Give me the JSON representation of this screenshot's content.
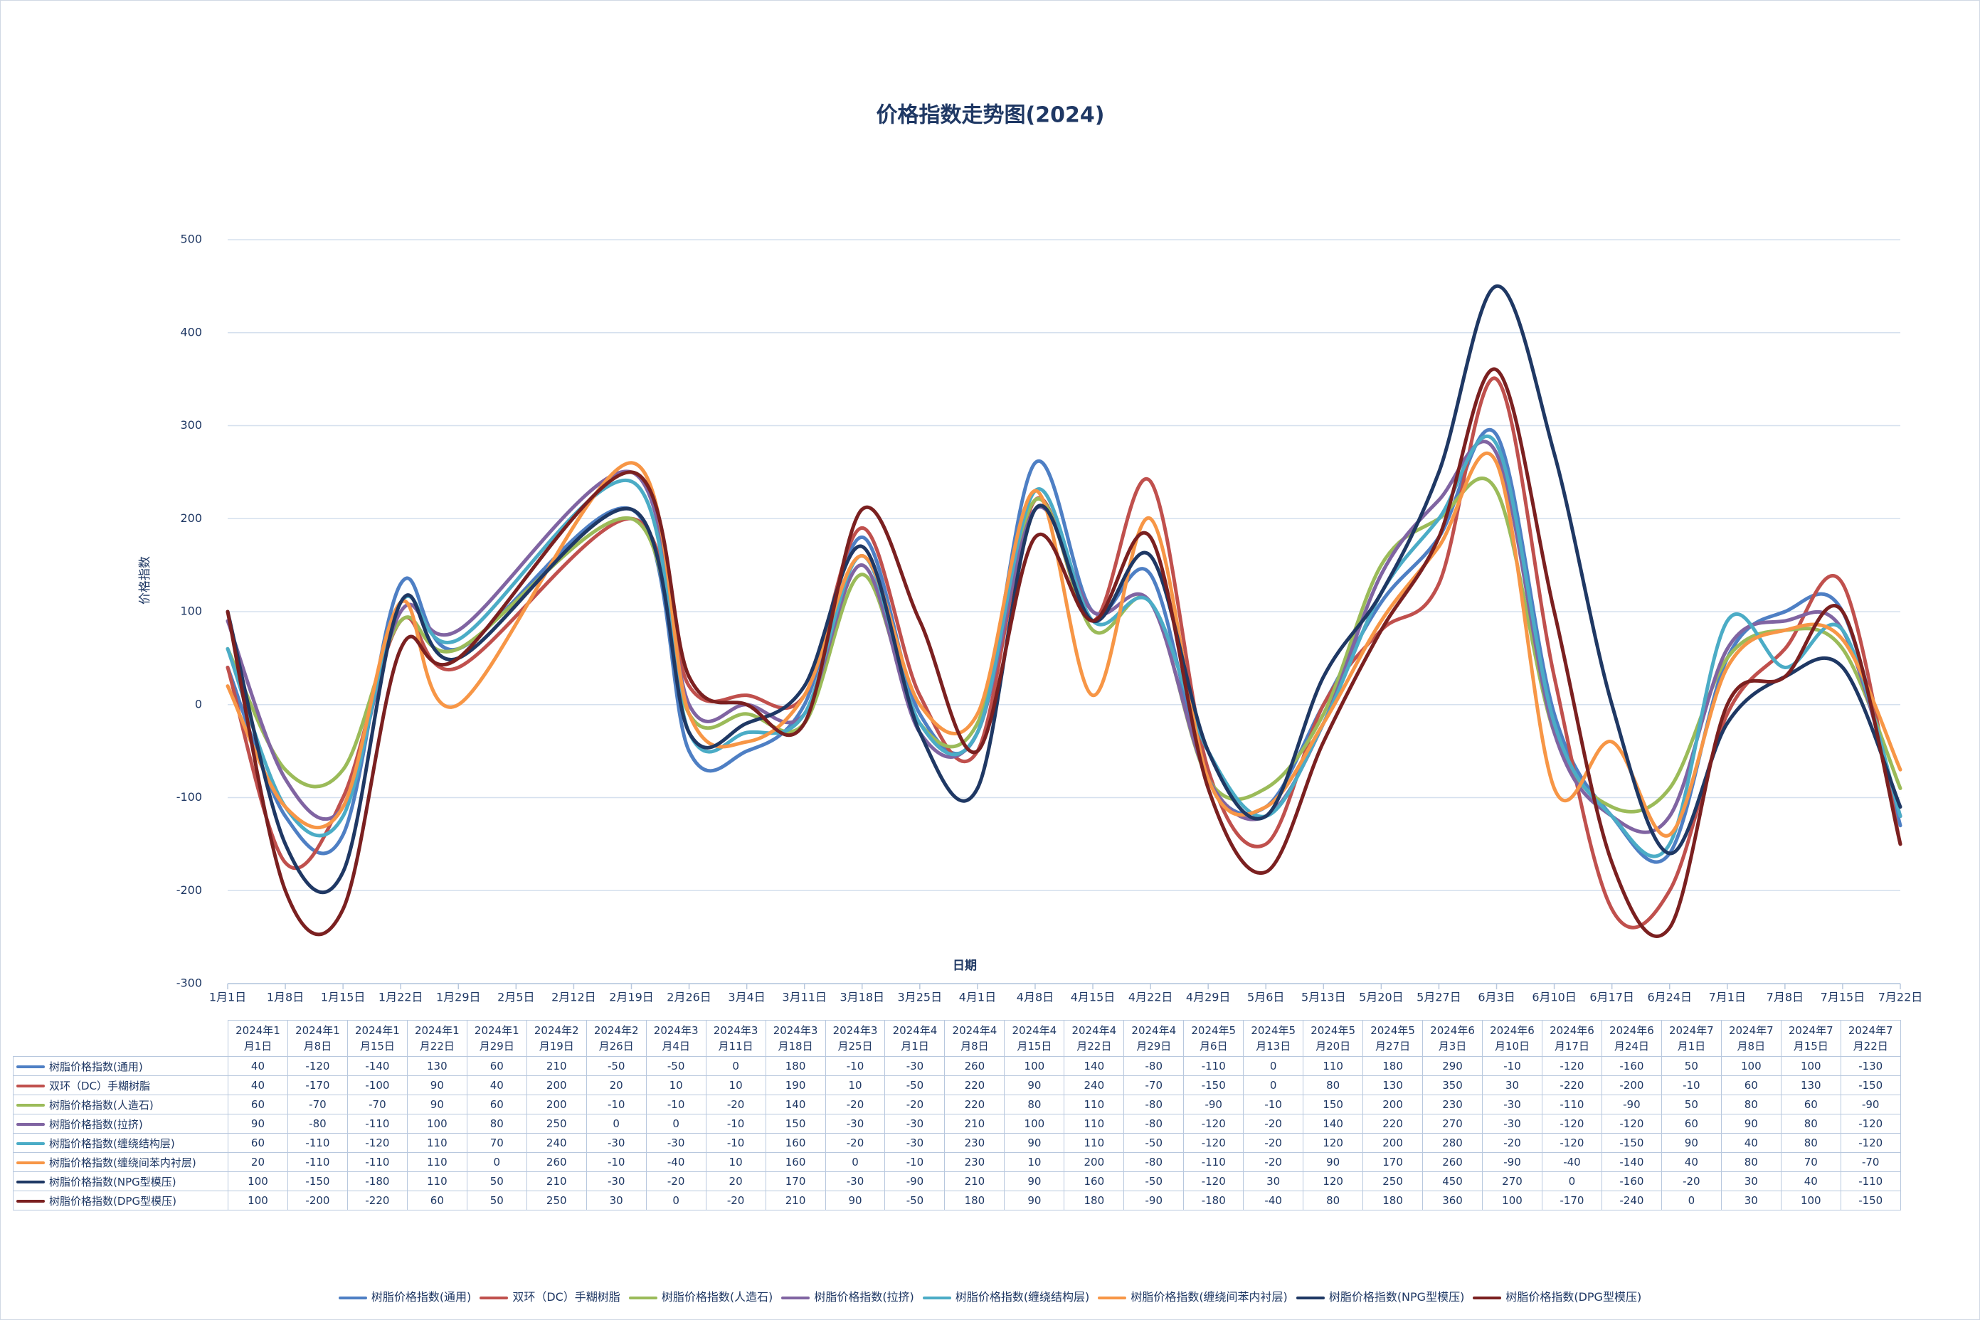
{
  "chart_data": {
    "type": "line",
    "title": "价格指数走势图(2024)",
    "y_label": "价格指数",
    "x_label": "日期",
    "ylim": [
      -300,
      500
    ],
    "yticks": [
      -300,
      -200,
      -100,
      0,
      100,
      200,
      300,
      400,
      500
    ],
    "grid": true,
    "legend": "bottom",
    "xticks": [
      "1月1日",
      "1月8日",
      "1月15日",
      "1月22日",
      "1月29日",
      "2月5日",
      "2月12日",
      "2月19日",
      "2月26日",
      "3月4日",
      "3月11日",
      "3月18日",
      "3月25日",
      "4月1日",
      "4月8日",
      "4月15日",
      "4月22日",
      "4月29日",
      "5月6日",
      "5月13日",
      "5月20日",
      "5月27日",
      "6月3日",
      "6月10日",
      "6月17日",
      "6月24日",
      "7月1日",
      "7月8日",
      "7月15日",
      "7月22日"
    ],
    "x": [
      "2024年1月1日",
      "2024年1月8日",
      "2024年1月15日",
      "2024年1月22日",
      "2024年1月29日",
      "2024年2月19日",
      "2024年2月26日",
      "2024年3月4日",
      "2024年3月11日",
      "2024年3月18日",
      "2024年3月25日",
      "2024年4月1日",
      "2024年4月8日",
      "2024年4月15日",
      "2024年4月22日",
      "2024年4月29日",
      "2024年5月6日",
      "2024年5月13日",
      "2024年5月20日",
      "2024年5月27日",
      "2024年6月3日",
      "2024年6月10日",
      "2024年6月17日",
      "2024年6月24日",
      "2024年7月1日",
      "2024年7月8日",
      "2024年7月15日",
      "2024年7月22日"
    ],
    "series": [
      {
        "name": "树脂价格指数(通用)",
        "color": "#4e7fc4",
        "values": [
          40,
          -120,
          -140,
          130,
          60,
          210,
          -50,
          -50,
          0,
          180,
          -10,
          -30,
          260,
          100,
          140,
          -80,
          -110,
          0,
          110,
          180,
          290,
          -10,
          -120,
          -160,
          50,
          100,
          100,
          -130
        ]
      },
      {
        "name": "双环（DC）手糊树脂",
        "color": "#c0504d",
        "values": [
          40,
          -170,
          -100,
          90,
          40,
          200,
          20,
          10,
          10,
          190,
          10,
          -50,
          220,
          90,
          240,
          -70,
          -150,
          0,
          80,
          130,
          350,
          30,
          -220,
          -200,
          -10,
          60,
          130,
          -150
        ]
      },
      {
        "name": "树脂价格指数(人造石)",
        "color": "#9bbb59",
        "values": [
          60,
          -70,
          -70,
          90,
          60,
          200,
          -10,
          -10,
          -20,
          140,
          -20,
          -20,
          220,
          80,
          110,
          -80,
          -90,
          -10,
          150,
          200,
          230,
          -30,
          -110,
          -90,
          50,
          80,
          60,
          -90
        ]
      },
      {
        "name": "树脂价格指数(拉挤)",
        "color": "#8064a2",
        "values": [
          90,
          -80,
          -110,
          100,
          80,
          250,
          0,
          0,
          -10,
          150,
          -30,
          -30,
          210,
          100,
          110,
          -80,
          -120,
          -20,
          140,
          220,
          270,
          -30,
          -120,
          -120,
          60,
          90,
          80,
          -120
        ]
      },
      {
        "name": "树脂价格指数(缠绕结构层)",
        "color": "#4bacc6",
        "values": [
          60,
          -110,
          -120,
          110,
          70,
          240,
          -30,
          -30,
          -10,
          160,
          -20,
          -30,
          230,
          90,
          110,
          -50,
          -120,
          -20,
          120,
          200,
          280,
          -20,
          -120,
          -150,
          90,
          40,
          80,
          -120
        ]
      },
      {
        "name": "树脂价格指数(缠绕间苯内衬层)",
        "color": "#f79646",
        "values": [
          20,
          -110,
          -110,
          110,
          0,
          260,
          -10,
          -40,
          10,
          160,
          0,
          -10,
          230,
          10,
          200,
          -80,
          -110,
          -20,
          90,
          170,
          260,
          -90,
          -40,
          -140,
          40,
          80,
          70,
          -70
        ]
      },
      {
        "name": "树脂价格指数(NPG型模压)",
        "color": "#1f3864",
        "values": [
          100,
          -150,
          -180,
          110,
          50,
          210,
          -30,
          -20,
          20,
          170,
          -30,
          -90,
          210,
          90,
          160,
          -50,
          -120,
          30,
          120,
          250,
          450,
          270,
          0,
          -160,
          -20,
          30,
          40,
          -110
        ]
      },
      {
        "name": "树脂价格指数(DPG型模压)",
        "color": "#7b2020",
        "values": [
          100,
          -200,
          -220,
          60,
          50,
          250,
          30,
          0,
          -20,
          210,
          90,
          -50,
          180,
          90,
          180,
          -90,
          -180,
          -40,
          80,
          180,
          360,
          100,
          -170,
          -240,
          0,
          30,
          100,
          -150
        ]
      }
    ]
  }
}
